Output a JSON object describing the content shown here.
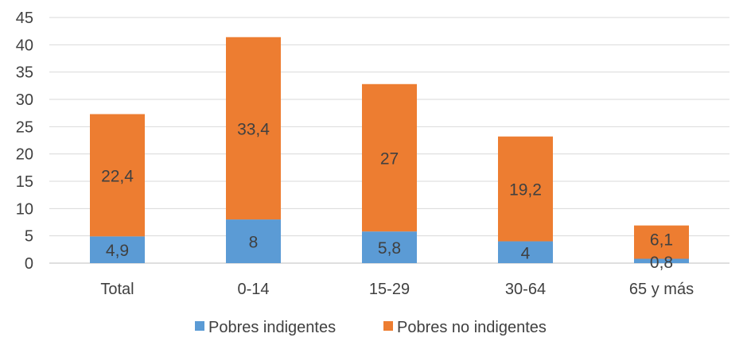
{
  "chart_data": {
    "type": "bar",
    "stacked": true,
    "categories": [
      "Total",
      "0-14",
      "15-29",
      "30-64",
      "65 y más"
    ],
    "series": [
      {
        "name": "Pobres indigentes",
        "values": [
          4.9,
          8,
          5.8,
          4,
          0.8
        ],
        "labels": [
          "4,9",
          "8",
          "5,8",
          "4",
          "0,8"
        ],
        "color": "#5b9bd5"
      },
      {
        "name": "Pobres no indigentes",
        "values": [
          22.4,
          33.4,
          27,
          19.2,
          6.1
        ],
        "labels": [
          "22,4",
          "33,4",
          "27",
          "19,2",
          "6,1"
        ],
        "color": "#ed7d31"
      }
    ],
    "ylim": [
      0,
      45
    ],
    "yticks": [
      0,
      5,
      10,
      15,
      20,
      25,
      30,
      35,
      40,
      45
    ],
    "grid": true,
    "legend_position": "bottom"
  }
}
